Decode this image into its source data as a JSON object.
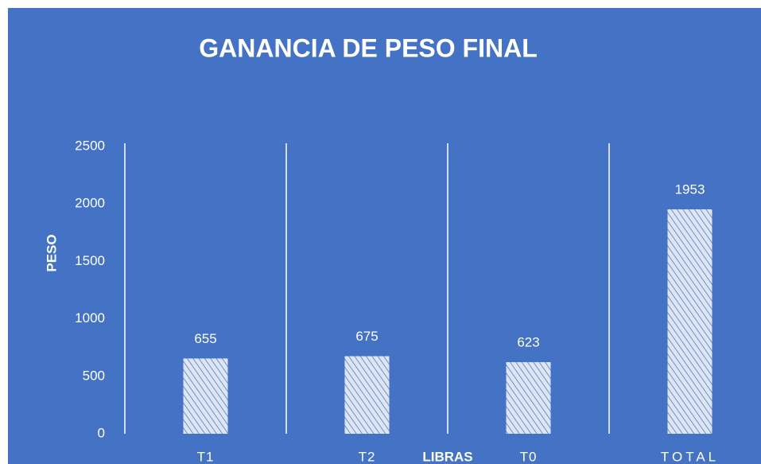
{
  "chart_data": {
    "type": "bar",
    "title": "GANANCIA DE PESO FINAL",
    "xlabel": "LIBRAS",
    "ylabel": "PESO",
    "categories": [
      "T1",
      "T2",
      "T0",
      "TOTAL"
    ],
    "values": [
      655,
      675,
      623,
      1953
    ],
    "color": "#4472c4",
    "ylim": [
      0,
      2500
    ],
    "yticks": [
      0,
      500,
      1000,
      1500,
      2000,
      2500
    ],
    "grid": false
  }
}
